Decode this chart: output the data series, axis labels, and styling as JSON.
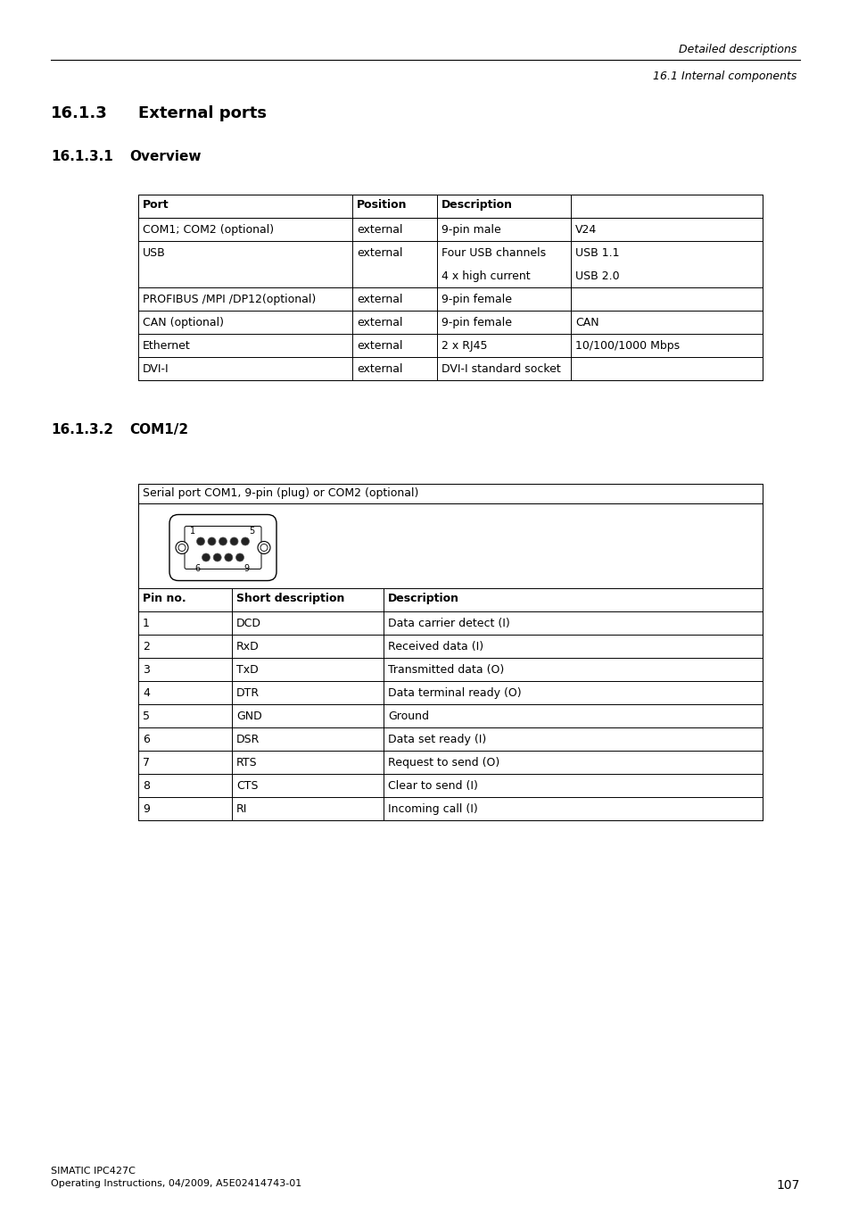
{
  "page_number": "107",
  "header_line1": "Detailed descriptions",
  "header_line2": "16.1 Internal components",
  "section_title": "16.1.3",
  "section_title2": "External ports",
  "subsection1_num": "16.1.3.1",
  "subsection1_title": "Overview",
  "subsection2_num": "16.1.3.2",
  "subsection2_title": "COM1/2",
  "overview_header": [
    "Port",
    "Position",
    "Description",
    ""
  ],
  "overview_rows": [
    [
      "COM1; COM2 (optional)",
      "external",
      "9-pin male",
      "V24"
    ],
    [
      "USB",
      "external",
      "Four USB channels",
      "USB 1.1"
    ],
    [
      "",
      "",
      "4 x high current",
      "USB 2.0"
    ],
    [
      "PROFIBUS /MPI /DP12(optional)",
      "external",
      "9-pin female",
      ""
    ],
    [
      "CAN (optional)",
      "external",
      "9-pin female",
      "CAN"
    ],
    [
      "Ethernet",
      "external",
      "2 x RJ45",
      "10/100/1000 Mbps"
    ],
    [
      "DVI-I",
      "external",
      "DVI-I standard socket",
      ""
    ]
  ],
  "com_table_title": "Serial port COM1, 9-pin (plug) or COM2 (optional)",
  "com_headers": [
    "Pin no.",
    "Short description",
    "Description"
  ],
  "com_rows": [
    [
      "1",
      "DCD",
      "Data carrier detect (I)"
    ],
    [
      "2",
      "RxD",
      "Received data (I)"
    ],
    [
      "3",
      "TxD",
      "Transmitted data (O)"
    ],
    [
      "4",
      "DTR",
      "Data terminal ready (O)"
    ],
    [
      "5",
      "GND",
      "Ground"
    ],
    [
      "6",
      "DSR",
      "Data set ready (I)"
    ],
    [
      "7",
      "RTS",
      "Request to send (O)"
    ],
    [
      "8",
      "CTS",
      "Clear to send (I)"
    ],
    [
      "9",
      "RI",
      "Incoming call (I)"
    ]
  ],
  "footer_line1": "SIMATIC IPC427C",
  "footer_line2": "Operating Instructions, 04/2009, A5E02414743-01"
}
